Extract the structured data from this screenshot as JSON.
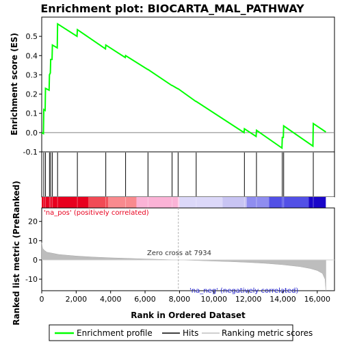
{
  "chart_data": {
    "type": "line",
    "title": "Enrichment plot: BIOCARTA_MAL_PATHWAY",
    "es_panel": {
      "ylabel": "Enrichment score (ES)",
      "ylim": [
        -0.1,
        0.6
      ],
      "yticks": [
        -0.1,
        0.0,
        0.1,
        0.2,
        0.3,
        0.4,
        0.5
      ],
      "ytick_labels": [
        "-0.1",
        "0.0",
        "0.1",
        "0.2",
        "0.3",
        "0.4",
        "0.5"
      ],
      "series": [
        {
          "name": "Enrichment profile",
          "color": "#00ff00",
          "x": [
            0,
            100,
            120,
            200,
            220,
            430,
            450,
            500,
            520,
            600,
            620,
            900,
            920,
            2050,
            2070,
            3700,
            3720,
            4850,
            4870,
            6150,
            6170,
            7550,
            7570,
            7900,
            7920,
            8950,
            8970,
            11750,
            11770,
            12450,
            12470,
            13950,
            13970,
            14030,
            14050,
            15750,
            15770,
            16500
          ],
          "y": [
            0.0,
            -0.005,
            0.12,
            0.115,
            0.23,
            0.22,
            0.3,
            0.31,
            0.38,
            0.38,
            0.455,
            0.44,
            0.565,
            0.5,
            0.535,
            0.435,
            0.455,
            0.39,
            0.4,
            0.328,
            0.328,
            0.245,
            0.245,
            0.228,
            0.228,
            0.162,
            0.162,
            0.0,
            0.02,
            -0.02,
            0.012,
            -0.08,
            -0.025,
            -0.025,
            0.035,
            -0.07,
            0.047,
            0.003
          ]
        }
      ]
    },
    "hits": {
      "name": "Hits",
      "positions": [
        120,
        220,
        450,
        520,
        620,
        920,
        2070,
        3720,
        4870,
        6170,
        7570,
        7920,
        8970,
        11770,
        12470,
        13970,
        14050,
        15770
      ]
    },
    "rank_metric": {
      "name": "Ranking metric scores",
      "ylabel": "Ranked list metric (PreRanked)",
      "ylim": [
        -16,
        27
      ],
      "yticks": [
        -10,
        0,
        10,
        20
      ],
      "ytick_labels": [
        "-10",
        "0",
        "10",
        "20"
      ],
      "x": [
        0,
        50,
        150,
        300,
        600,
        1000,
        2000,
        3000,
        4000,
        5000,
        6000,
        7000,
        7934,
        9000,
        10000,
        11000,
        12000,
        13000,
        14000,
        15000,
        15600,
        16000,
        16300,
        16450,
        16500
      ],
      "y": [
        9,
        6,
        5,
        4,
        3.5,
        2.8,
        2.0,
        1.5,
        1.1,
        0.8,
        0.5,
        0.25,
        0,
        -0.3,
        -0.6,
        -0.9,
        -1.3,
        -1.8,
        -2.5,
        -3.5,
        -4.5,
        -5.5,
        -7,
        -10,
        -16
      ]
    },
    "xaxis": {
      "xlabel": "Rank in Ordered Dataset",
      "xlim": [
        0,
        17000
      ],
      "xticks": [
        0,
        2000,
        4000,
        6000,
        8000,
        10000,
        12000,
        14000,
        16000
      ],
      "xtick_labels": [
        "0",
        "2,000",
        "4,000",
        "6,000",
        "8,000",
        "10,000",
        "12,000",
        "14,000",
        "16,000"
      ]
    },
    "annotations": {
      "pos_label": "'na_pos' (positively correlated)",
      "neg_label": "'na_neg' (negatively correlated)",
      "zero_cross": "Zero cross at 7934",
      "zero_cross_value": 7934
    },
    "legend": [
      {
        "label": "Enrichment profile",
        "color": "#00ff00"
      },
      {
        "label": "Hits",
        "color": "#000000"
      },
      {
        "label": "Ranking metric scores",
        "color": "#c0c0c0"
      }
    ],
    "gradient_bar": {
      "colors": [
        "#e8001e",
        "#f14a55",
        "#f98a8e",
        "#fbb3d6",
        "#fdd0ec",
        "#dcd8f9",
        "#c8c4f3",
        "#8f8df0",
        "#5250e6",
        "#1a06c9"
      ],
      "breaks": [
        0,
        2700,
        3850,
        5500,
        7934,
        8000,
        10500,
        11900,
        13200,
        15500,
        16500
      ]
    }
  }
}
